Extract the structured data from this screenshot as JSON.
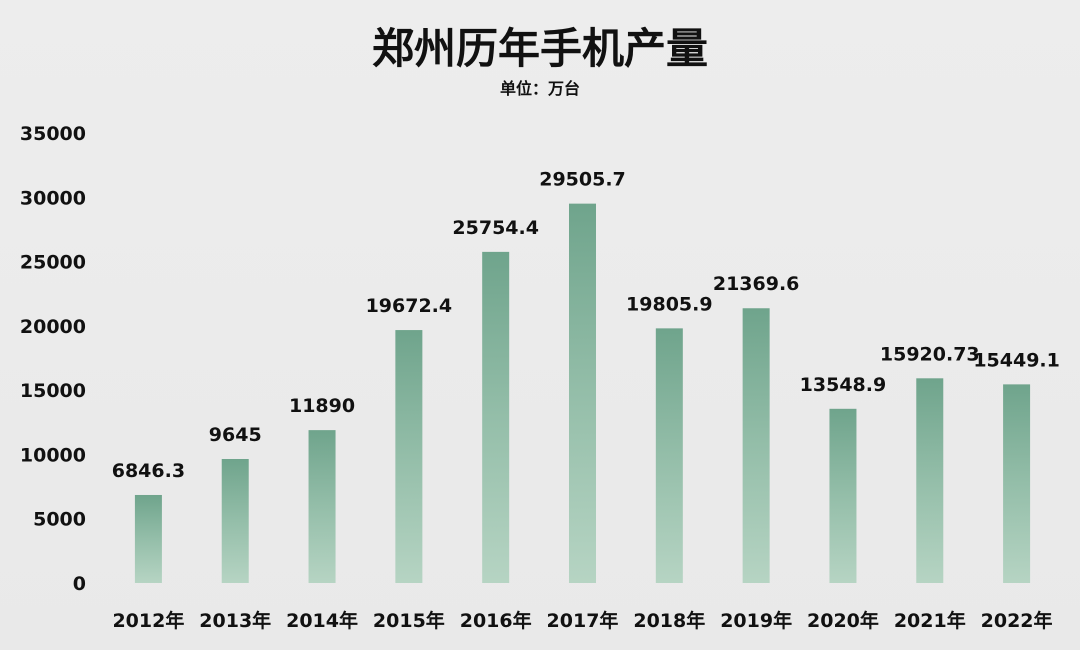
{
  "chart_data": {
    "type": "bar",
    "title": "郑州历年手机产量",
    "subtitle": "单位：万台",
    "categories": [
      "2012年",
      "2013年",
      "2014年",
      "2015年",
      "2016年",
      "2017年",
      "2018年",
      "2019年",
      "2020年",
      "2021年",
      "2022年"
    ],
    "values": [
      6846.3,
      9645,
      11890,
      19672.4,
      25754.4,
      29505.7,
      19805.9,
      21369.6,
      13548.9,
      15920.73,
      15449.1
    ],
    "value_labels": [
      "6846.3",
      "9645",
      "11890",
      "19672.4",
      "25754.4",
      "29505.7",
      "19805.9",
      "21369.6",
      "13548.9",
      "15920.73",
      "15449.1"
    ],
    "ylim": [
      0,
      35000
    ],
    "yticks": [
      0,
      5000,
      10000,
      15000,
      20000,
      25000,
      30000,
      35000
    ],
    "ytick_labels": [
      "0",
      "5000",
      "10000",
      "15000",
      "20000",
      "25000",
      "30000",
      "35000"
    ],
    "grid": false,
    "legend": "none",
    "colors": {
      "bar_top": "#6fa48c",
      "bar_mid": "#94bea9",
      "bar_bottom": "#b6d4c3",
      "background": "#ebebeb",
      "text": "#111111"
    }
  }
}
